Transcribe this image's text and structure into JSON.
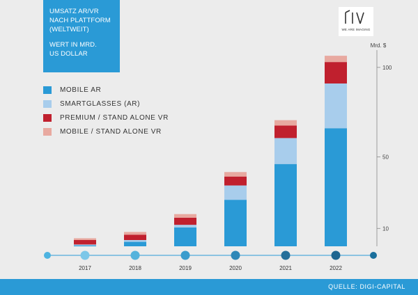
{
  "header": {
    "title_lines": [
      "UMSATZ AR/VR",
      "NACH PLATTFORM",
      "(WELTWEIT)"
    ],
    "unit_lines": [
      "WERT IN MRD.",
      "US DOLLAR"
    ]
  },
  "logo": {
    "mark": "PIV",
    "tagline": "WE ARE IMAGING"
  },
  "footer": {
    "source": "QUELLE: DIGI-CAPITAL"
  },
  "colors": {
    "mobile_ar": "#2a9ad6",
    "smartglasses": "#a8cdec",
    "premium_vr": "#c0202e",
    "mobile_vr": "#e8a9a0",
    "timeline": "#2a9ad6",
    "background": "#ececec"
  },
  "chart_data": {
    "type": "bar",
    "stacked": true,
    "categories": [
      "2017",
      "2018",
      "2019",
      "2020",
      "2021",
      "2022"
    ],
    "y_unit_label": "Mrd. $",
    "y_ticks": [
      10,
      50,
      100
    ],
    "ylim": [
      0,
      105
    ],
    "series": [
      {
        "name": "MOBILE AR",
        "color": "#2a9ad6",
        "values": [
          0.5,
          2.5,
          10.5,
          26,
          46,
          66
        ]
      },
      {
        "name": "SMARTGLASSES (AR)",
        "color": "#a8cdec",
        "values": [
          0.5,
          1,
          1.5,
          8,
          14.5,
          25
        ]
      },
      {
        "name": "PREMIUM / STAND ALONE VR",
        "color": "#c0202e",
        "values": [
          2.5,
          3,
          4,
          5,
          7,
          12
        ]
      },
      {
        "name": "MOBILE / STAND ALONE VR",
        "color": "#e8a9a0",
        "values": [
          1,
          1.5,
          2,
          2.5,
          3,
          3.5
        ]
      }
    ],
    "legend": "top-left",
    "grid": false
  }
}
